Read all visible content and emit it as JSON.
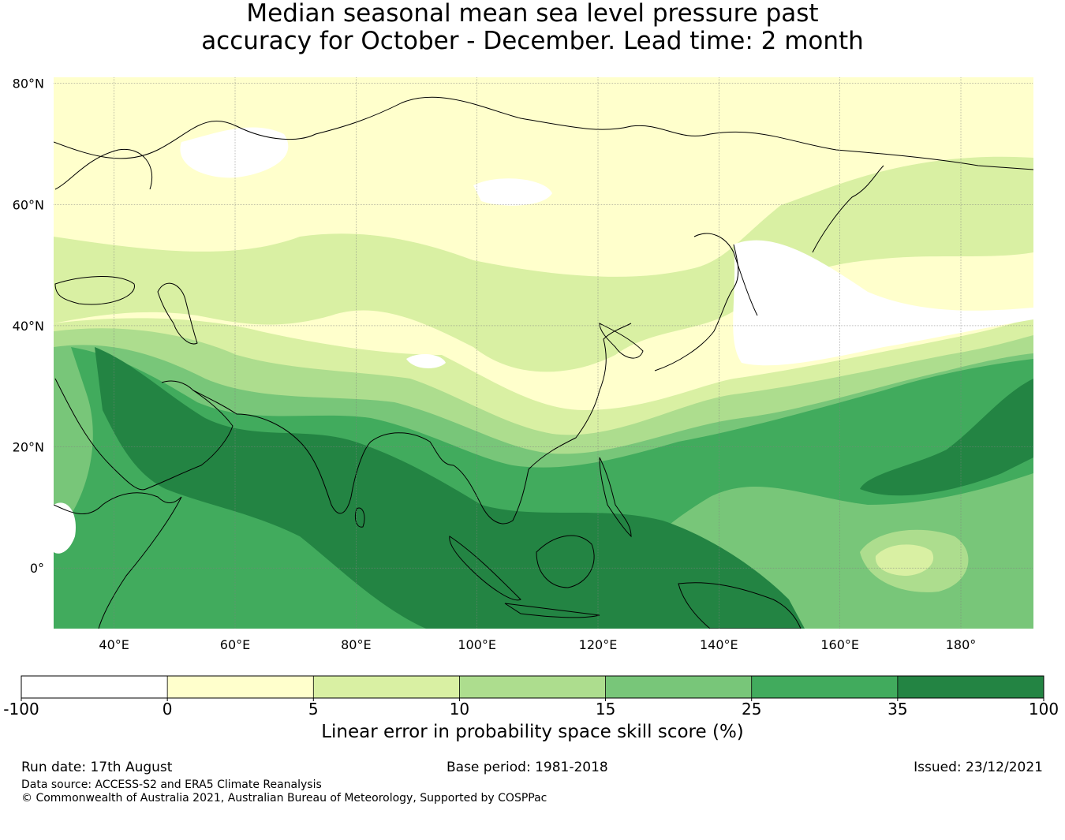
{
  "title_line1": "Median seasonal mean sea level pressure past",
  "title_line2": "accuracy for October - December. Lead time: 2 month",
  "map": {
    "lon_range": [
      30,
      192
    ],
    "lat_range": [
      -10,
      81
    ],
    "lat_ticks": [
      {
        "value": 80,
        "label": "80°N"
      },
      {
        "value": 60,
        "label": "60°N"
      },
      {
        "value": 40,
        "label": "40°N"
      },
      {
        "value": 20,
        "label": "20°N"
      },
      {
        "value": 0,
        "label": "0°"
      }
    ],
    "lon_ticks": [
      {
        "value": 40,
        "label": "40°E"
      },
      {
        "value": 60,
        "label": "60°E"
      },
      {
        "value": 80,
        "label": "80°E"
      },
      {
        "value": 100,
        "label": "100°E"
      },
      {
        "value": 120,
        "label": "120°E"
      },
      {
        "value": 140,
        "label": "140°E"
      },
      {
        "value": 160,
        "label": "160°E"
      },
      {
        "value": 180,
        "label": "180°"
      }
    ]
  },
  "colorbar": {
    "boundaries": [
      "-100",
      "0",
      "5",
      "10",
      "15",
      "25",
      "35",
      "100"
    ],
    "colors": [
      "#ffffff",
      "#ffffcc",
      "#d9f0a3",
      "#addd8e",
      "#78c679",
      "#41ab5d",
      "#238443"
    ],
    "label": "Linear error in probability space skill score (%)"
  },
  "footer": {
    "run_date": "Run date: 17th August",
    "base_period": "Base period: 1981-2018",
    "issued": "Issued: 23/12/2021",
    "data_source": "Data source: ACCESS-S2 and ERA5 Climate Reanalysis",
    "copyright": "© Commonwealth of Australia 2021, Australian Bureau of Meteorology, Supported by COSPPac"
  }
}
